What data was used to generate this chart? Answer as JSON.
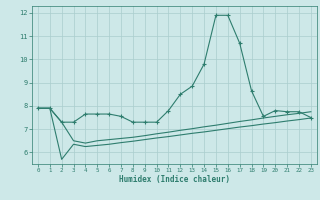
{
  "xlabel": "Humidex (Indice chaleur)",
  "x": [
    0,
    1,
    2,
    3,
    4,
    5,
    6,
    7,
    8,
    9,
    10,
    11,
    12,
    13,
    14,
    15,
    16,
    17,
    18,
    19,
    20,
    21,
    22,
    23
  ],
  "y_main": [
    7.9,
    7.9,
    7.3,
    7.3,
    7.65,
    7.65,
    7.65,
    7.55,
    7.3,
    7.3,
    7.3,
    7.8,
    8.5,
    8.85,
    9.8,
    11.9,
    11.9,
    10.7,
    8.65,
    7.55,
    7.8,
    7.75,
    7.75,
    7.5
  ],
  "y_upper": [
    7.9,
    7.9,
    7.3,
    6.5,
    6.4,
    6.5,
    6.55,
    6.6,
    6.65,
    6.72,
    6.8,
    6.87,
    6.95,
    7.02,
    7.1,
    7.17,
    7.25,
    7.33,
    7.4,
    7.48,
    7.55,
    7.62,
    7.68,
    7.75
  ],
  "y_lower": [
    7.9,
    7.9,
    5.7,
    6.35,
    6.25,
    6.3,
    6.35,
    6.42,
    6.48,
    6.55,
    6.62,
    6.68,
    6.75,
    6.82,
    6.88,
    6.95,
    7.02,
    7.09,
    7.15,
    7.22,
    7.28,
    7.35,
    7.41,
    7.48
  ],
  "line_color": "#2e7d6e",
  "bg_color": "#cde8e8",
  "grid_color": "#aacece",
  "ylim": [
    5.5,
    12.3
  ],
  "xlim": [
    -0.5,
    23.5
  ],
  "yticks": [
    6,
    7,
    8,
    9,
    10,
    11,
    12
  ],
  "xticks": [
    0,
    1,
    2,
    3,
    4,
    5,
    6,
    7,
    8,
    9,
    10,
    11,
    12,
    13,
    14,
    15,
    16,
    17,
    18,
    19,
    20,
    21,
    22,
    23
  ]
}
